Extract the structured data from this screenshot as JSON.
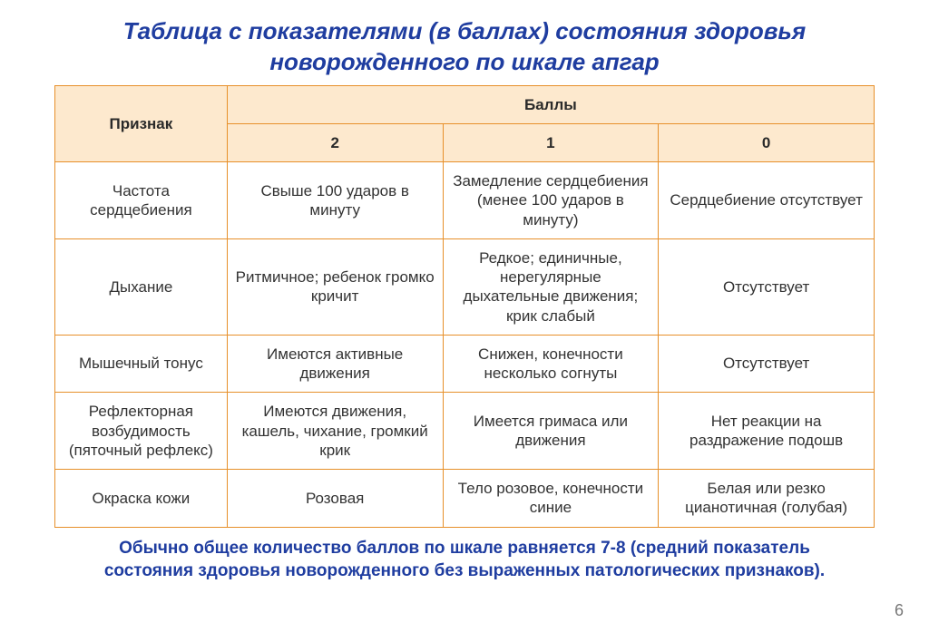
{
  "title": "Таблица с показателями (в баллах) состояния здоровья новорожденного по шкале апгар",
  "table": {
    "signHeader": "Признак",
    "scoresHeader": "Баллы",
    "scoreCols": [
      "2",
      "1",
      "0"
    ],
    "rows": [
      {
        "sign": "Частота сердцебиения",
        "cells": [
          "Свыше 100 ударов в минуту",
          "Замедление сердцебиения (менее 100 ударов в минуту)",
          "Сердцебиение отсутствует"
        ]
      },
      {
        "sign": "Дыхание",
        "cells": [
          "Ритмичное; ребенок громко кричит",
          "Редкое; единичные, нерегулярные дыхательные движения; крик слабый",
          "Отсутствует"
        ]
      },
      {
        "sign": "Мышечный тонус",
        "cells": [
          "Имеются активные движения",
          "Снижен, конечности несколько согнуты",
          "Отсутствует"
        ]
      },
      {
        "sign": "Рефлекторная возбудимость (пяточный рефлекс)",
        "cells": [
          "Имеются движения, кашель, чихание, громкий крик",
          "Имеется гримаса или движения",
          "Нет реакции на раздражение подошв"
        ]
      },
      {
        "sign": "Окраска кожи",
        "cells": [
          "Розовая",
          "Тело розовое, конечности синие",
          "Белая или резко цианотичная (голубая)"
        ]
      }
    ]
  },
  "footnote": "Обычно общее количество баллов по шкале равняется 7-8 (средний показатель состояния здоровья новорожденного без выраженных патологических признаков).",
  "pageNumber": "6",
  "colors": {
    "title": "#1f3da0",
    "border": "#e7902a",
    "headerBg": "#fde9ce",
    "cellText": "#333333",
    "bg": "#ffffff"
  }
}
